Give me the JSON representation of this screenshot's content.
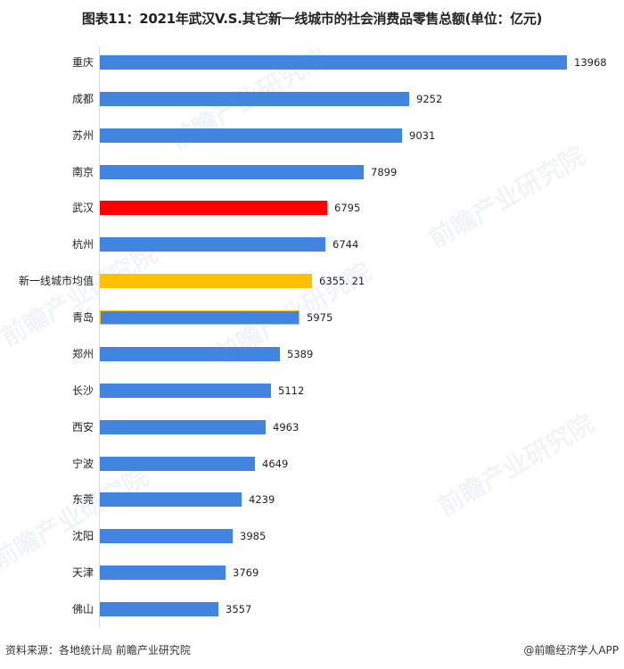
{
  "title": "图表11：2021年武汉V.S.其它新一线城市的社会消费品零售总额(单位：亿元)",
  "colors": {
    "default": "#4285e0",
    "highlight": "#ff0000",
    "average": "#ffc000",
    "axis": "#d9d9d9"
  },
  "watermark": "前瞻产业研究院",
  "footer": {
    "source": "资料来源：各地统计局 前瞻产业研究院",
    "credit": "@前瞻经济学人APP"
  },
  "chart_data": {
    "type": "bar",
    "orientation": "horizontal",
    "title": "图表11：2021年武汉V.S.其它新一线城市的社会消费品零售总额(单位：亿元)",
    "xlabel": "",
    "ylabel": "",
    "unit": "亿元",
    "grid": false,
    "legend": "none",
    "xlim": [
      0,
      14000
    ],
    "categories": [
      "重庆",
      "成都",
      "苏州",
      "南京",
      "武汉",
      "杭州",
      "新一线城市均值",
      "青岛",
      "郑州",
      "长沙",
      "西安",
      "宁波",
      "东莞",
      "沈阳",
      "天津",
      "佛山"
    ],
    "values": [
      13968,
      9252,
      9031,
      7899,
      6795,
      6744,
      6355.21,
      5975,
      5389,
      5112,
      4963,
      4649,
      4239,
      3985,
      3769,
      3557
    ],
    "value_labels": [
      "13968",
      "9252",
      "9031",
      "7899",
      "6795",
      "6744",
      "6355. 21",
      "5975",
      "5389",
      "5112",
      "4963",
      "4649",
      "4239",
      "3985",
      "3769",
      "3557"
    ],
    "bar_colors": [
      "#4285e0",
      "#4285e0",
      "#4285e0",
      "#4285e0",
      "#ff0000",
      "#4285e0",
      "#ffc000",
      "#4285e0",
      "#4285e0",
      "#4285e0",
      "#4285e0",
      "#4285e0",
      "#4285e0",
      "#4285e0",
      "#4285e0",
      "#4285e0"
    ],
    "highlights": {
      "武汉": "#ff0000",
      "新一线城市均值": "#ffc000"
    }
  }
}
